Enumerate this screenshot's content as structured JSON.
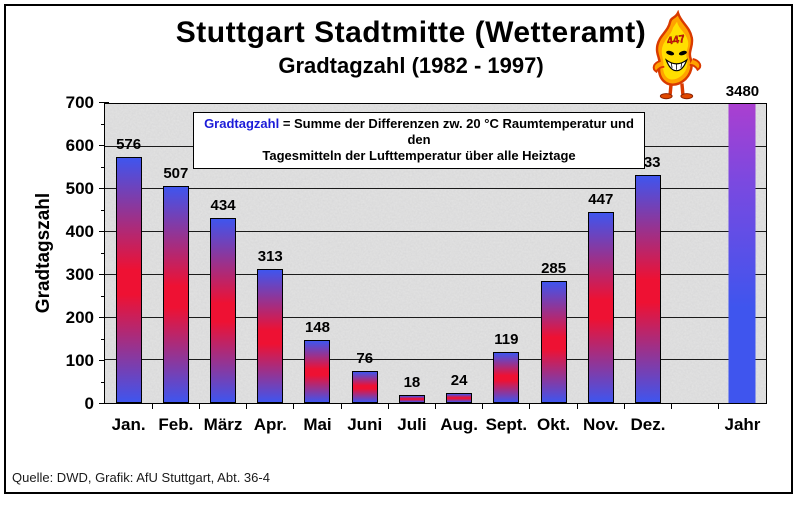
{
  "window": {
    "title": "Stuttgart Stadtmitte (Wetteramt)",
    "subtitle": "Gradtagzahl (1982 - 1997)",
    "source": "Quelle: DWD, Grafik: AfU Stuttgart, Abt. 36-4"
  },
  "mascot": {
    "badge": "447"
  },
  "annotation": {
    "term": "Gradtagzahl",
    "line1": "= Summe der Differenzen zw. 20 °C Raumtemperatur und den",
    "line2": "Tagesmitteln der Lufttemperatur über alle Heiztage"
  },
  "chart_data": {
    "type": "bar",
    "title": "Stuttgart Stadtmitte (Wetteramt) — Gradtagzahl (1982 - 1997)",
    "xlabel": "",
    "ylabel": "Gradtagszahl",
    "ylim": [
      0,
      700
    ],
    "ytick_step": 100,
    "ytick_minor_step": 50,
    "grid": true,
    "categories": [
      "Jan.",
      "Feb.",
      "März",
      "Apr.",
      "Mai",
      "Juni",
      "Juli",
      "Aug.",
      "Sept.",
      "Okt.",
      "Nov.",
      "Dez.",
      "",
      "Jahr"
    ],
    "values": [
      576,
      507,
      434,
      313,
      148,
      76,
      18,
      24,
      119,
      285,
      447,
      533,
      null,
      3480
    ],
    "clipped_at_ymax": [
      "Jahr"
    ],
    "annotation": "Gradtagzahl = Summe der Differenzen zw. 20 °C Raumtemperatur und den Tagesmitteln der Lufttemperatur über alle Heiztage"
  },
  "colors": {
    "bar_blue": "#3f55ee",
    "bar_red": "#ee1133",
    "bar_clip_top": "#aa3fd0",
    "term_blue": "#1c1cd8",
    "plot_bg": "#e2e2e2"
  }
}
